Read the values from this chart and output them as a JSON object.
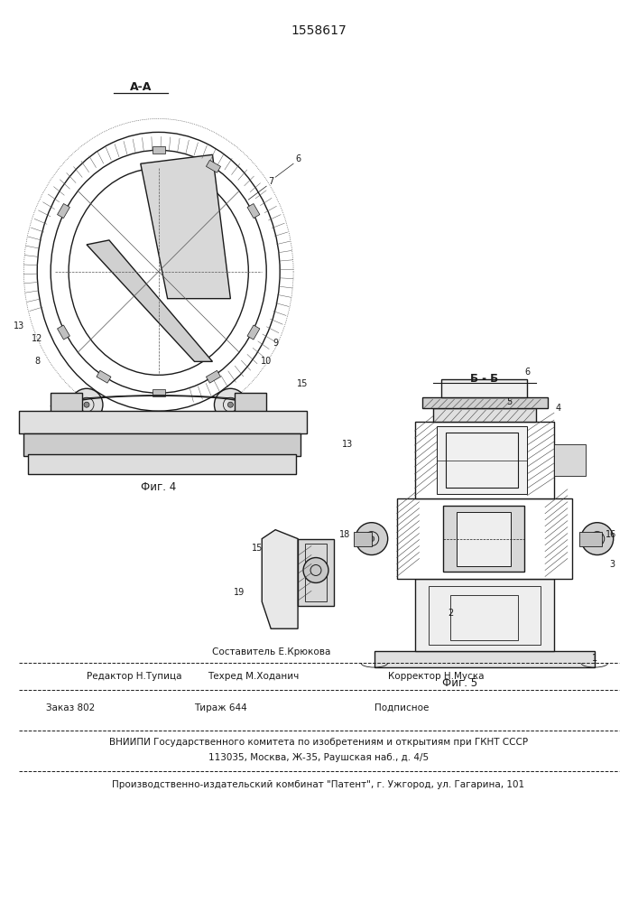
{
  "patent_number": "1558617",
  "background_color": "#ffffff",
  "drawing_color": "#1a1a1a",
  "fig4_label": "Фиг. 4",
  "fig5_label": "Фиг. 5",
  "section_aa": "A-A",
  "section_bb": "Б - Б",
  "footer_line1_center": "Составитель Е.Крюкова",
  "footer_line2_col1": "Редактор Н.Тупица",
  "footer_line2_col2": "Техред М.Ходанич",
  "footer_line2_col3": "Корректор Н.Муска",
  "footer_line3_col1": "Заказ 802",
  "footer_line3_col2": "Тираж 644",
  "footer_line3_col3": "Подписное",
  "footer_vnipi": "ВНИИПИ Государственного комитета по изобретениям и открытиям при ГКНТ СССР",
  "footer_address": "113035, Москва, Ж-35, Раушская наб., д. 4/5",
  "footer_publisher": "Производственно-издательский комбинат \"Патент\", г. Ужгород, ул. Гагарина, 101"
}
